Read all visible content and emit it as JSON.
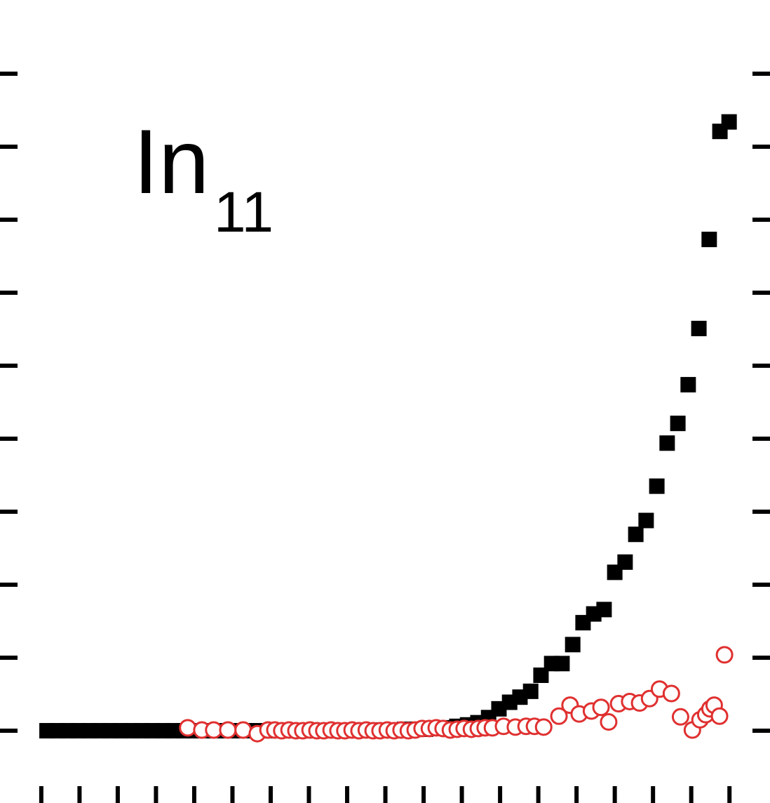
{
  "chart_data": {
    "type": "scatter",
    "annotation": {
      "text": "In",
      "subscript": "11"
    },
    "xlim": [
      -1.08,
      19.06
    ],
    "ylim": [
      -0.99,
      10.01
    ],
    "xticks": [
      0,
      1,
      2,
      3,
      4,
      5,
      6,
      7,
      8,
      9,
      10,
      11,
      12,
      13,
      14,
      15,
      16,
      17,
      18
    ],
    "yticks": [
      0,
      1,
      2,
      3,
      4,
      5,
      6,
      7,
      8,
      9
    ],
    "series": [
      {
        "marker": "square",
        "color": "#000000",
        "x": [
          0.15,
          0.42,
          0.7,
          0.97,
          1.25,
          1.52,
          1.8,
          2.07,
          2.35,
          2.62,
          2.9,
          3.17,
          3.45,
          3.72,
          4.0,
          4.27,
          4.55,
          4.82,
          5.1,
          5.37,
          5.65,
          5.92,
          6.2,
          6.47,
          6.75,
          7.02,
          7.3,
          7.57,
          7.85,
          8.12,
          8.4,
          8.67,
          8.95,
          9.22,
          9.5,
          9.77,
          10.05,
          10.32,
          10.6,
          10.87,
          11.15,
          11.42,
          11.7,
          11.97,
          12.25,
          12.52,
          12.8,
          13.07,
          13.35,
          13.62,
          13.9,
          14.17,
          14.45,
          14.72,
          15.0,
          15.27,
          15.55,
          15.82,
          16.1,
          16.37,
          16.65,
          16.92,
          17.2,
          17.47,
          17.75,
          17.99
        ],
        "values": [
          0,
          0,
          0,
          0,
          0,
          0,
          0,
          0,
          0,
          0,
          0,
          0,
          0,
          0,
          0,
          0,
          0,
          0,
          0,
          0,
          0,
          0,
          0,
          0,
          0,
          0,
          0,
          0,
          0,
          0,
          0.01,
          0.01,
          0.01,
          0.01,
          0.02,
          0.02,
          0.02,
          0.03,
          0.04,
          0.06,
          0.08,
          0.11,
          0.18,
          0.3,
          0.39,
          0.46,
          0.54,
          0.76,
          0.92,
          0.92,
          1.18,
          1.48,
          1.6,
          1.66,
          2.17,
          2.31,
          2.69,
          2.88,
          3.35,
          3.94,
          4.21,
          4.74,
          5.51,
          6.73,
          8.21,
          8.34
        ]
      },
      {
        "marker": "circle",
        "color": "#e03030",
        "x": [
          3.83,
          4.2,
          4.51,
          4.88,
          5.28,
          5.65,
          5.93,
          6.11,
          6.29,
          6.48,
          6.66,
          6.84,
          7.03,
          7.21,
          7.39,
          7.58,
          7.76,
          7.94,
          8.13,
          8.31,
          8.5,
          8.68,
          8.86,
          9.05,
          9.23,
          9.41,
          9.6,
          9.78,
          9.96,
          10.15,
          10.33,
          10.51,
          10.7,
          10.88,
          11.06,
          11.25,
          11.43,
          11.61,
          11.8,
          12.09,
          12.4,
          12.68,
          12.9,
          13.14,
          13.54,
          13.83,
          14.07,
          14.39,
          14.64,
          14.84,
          15.1,
          15.39,
          15.65,
          15.91,
          16.17,
          16.48,
          16.72,
          17.03,
          17.23,
          17.38,
          17.49,
          17.6,
          17.74,
          17.87
        ],
        "values": [
          0.04,
          0.01,
          0.01,
          0.01,
          0.01,
          -0.04,
          0.01,
          0.01,
          0.0,
          0.01,
          0.0,
          0.0,
          0.01,
          0.0,
          0.0,
          0.01,
          0.0,
          0.0,
          0.01,
          0.0,
          0.01,
          0.0,
          0.0,
          0.01,
          0.0,
          0.01,
          0.0,
          0.01,
          0.03,
          0.03,
          0.04,
          0.03,
          0.01,
          0.02,
          0.03,
          0.02,
          0.03,
          0.04,
          0.04,
          0.06,
          0.05,
          0.06,
          0.06,
          0.05,
          0.2,
          0.35,
          0.23,
          0.27,
          0.32,
          0.12,
          0.37,
          0.4,
          0.38,
          0.44,
          0.57,
          0.51,
          0.19,
          0.01,
          0.15,
          0.22,
          0.3,
          0.35,
          0.2,
          1.04
        ]
      }
    ]
  }
}
